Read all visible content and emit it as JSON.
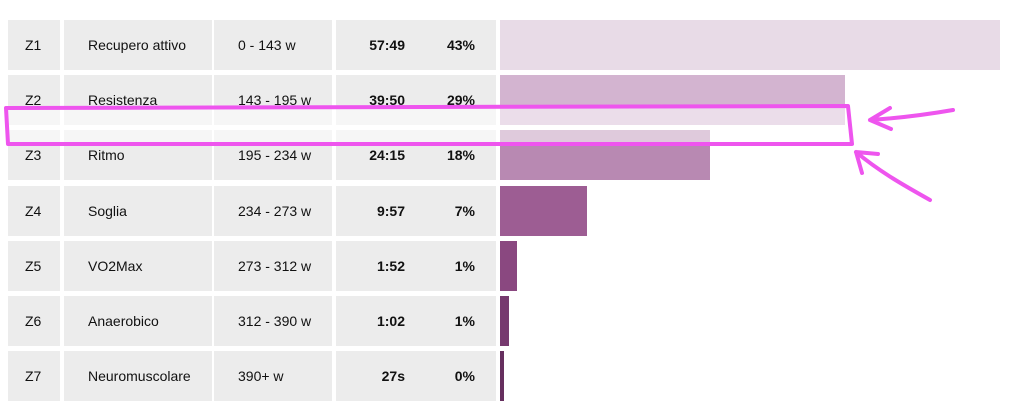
{
  "zones": [
    {
      "zone": "Z1",
      "name": "Recupero attivo",
      "range": "0 - 143 w",
      "time": "57:49",
      "percent": "43%",
      "bar_fraction": 1.0,
      "bar_color": "#e8dbe7"
    },
    {
      "zone": "Z2",
      "name": "Resistenza",
      "range": "143 - 195 w",
      "time": "39:50",
      "percent": "29%",
      "bar_fraction": 0.69,
      "bar_color": "#d3b4d0"
    },
    {
      "zone": "Z3",
      "name": "Ritmo",
      "range": "195 - 234 w",
      "time": "24:15",
      "percent": "18%",
      "bar_fraction": 0.42,
      "bar_color": "#b889b2"
    },
    {
      "zone": "Z4",
      "name": "Soglia",
      "range": "234 - 273 w",
      "time": "9:57",
      "percent": "7%",
      "bar_fraction": 0.174,
      "bar_color": "#9d5d93"
    },
    {
      "zone": "Z5",
      "name": "VO2Max",
      "range": "273 - 312 w",
      "time": "1:52",
      "percent": "1%",
      "bar_fraction": 0.034,
      "bar_color": "#8a4880"
    },
    {
      "zone": "Z6",
      "name": "Anaerobico",
      "range": "312 - 390 w",
      "time": "1:02",
      "percent": "1%",
      "bar_fraction": 0.018,
      "bar_color": "#773a6f"
    },
    {
      "zone": "Z7",
      "name": "Neuromuscolare",
      "range": "390+ w",
      "time": "27s",
      "percent": "0%",
      "bar_fraction": 0.008,
      "bar_color": "#662f5f"
    }
  ],
  "annotation": {
    "color": "#ee55ee",
    "shapes": [
      "highlight-rectangle",
      "arrow-upper",
      "arrow-lower"
    ]
  }
}
